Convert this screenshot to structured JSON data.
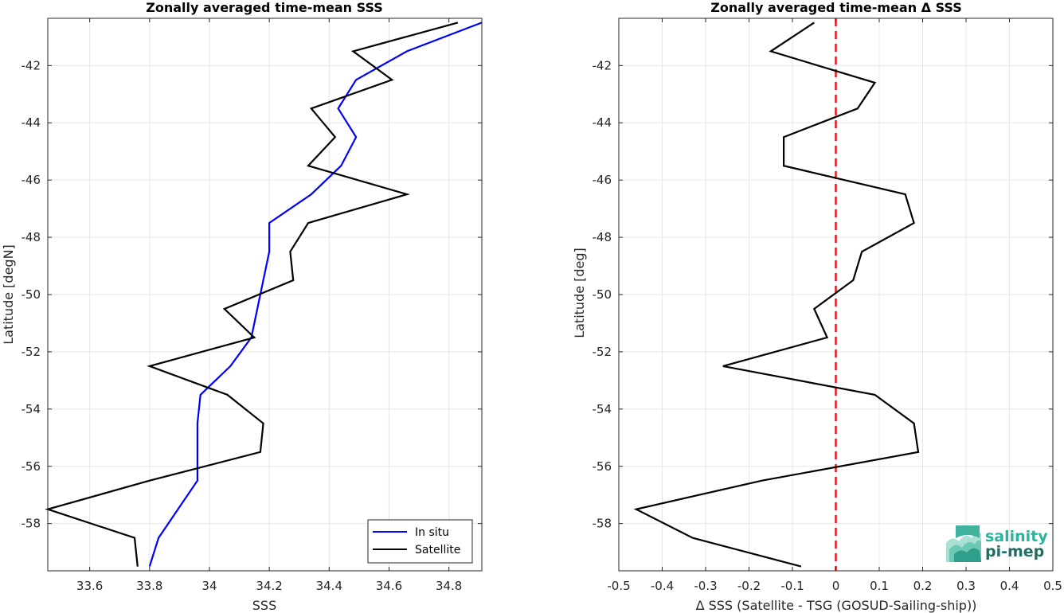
{
  "chart_data": [
    {
      "type": "line",
      "title": "Zonally averaged time-mean SSS",
      "xlabel": "SSS",
      "ylabel": "Latitude [degN]",
      "xlim": [
        33.46,
        34.91
      ],
      "ylim": [
        -59.65,
        -40.35
      ],
      "xticks": [
        33.6,
        33.8,
        34,
        34.2,
        34.4,
        34.6,
        34.8
      ],
      "xtick_labels": [
        "33.6",
        "33.8",
        "34",
        "34.2",
        "34.4",
        "34.6",
        "34.8"
      ],
      "yticks": [
        -42,
        -44,
        -46,
        -48,
        -50,
        -52,
        -54,
        -56,
        -58
      ],
      "ytick_labels": [
        "-42",
        "-44",
        "-46",
        "-48",
        "-50",
        "-52",
        "-54",
        "-56",
        "-58"
      ],
      "grid": true,
      "legend_position": "bottom-right",
      "series": [
        {
          "name": "In situ",
          "color": "#0000ff",
          "points": [
            [
              34.91,
              -40.5
            ],
            [
              34.66,
              -41.5
            ],
            [
              34.49,
              -42.5
            ],
            [
              34.43,
              -43.5
            ],
            [
              34.49,
              -44.5
            ],
            [
              34.44,
              -45.5
            ],
            [
              34.34,
              -46.5
            ],
            [
              34.2,
              -47.5
            ],
            [
              34.2,
              -48.5
            ],
            [
              34.18,
              -49.5
            ],
            [
              34.16,
              -50.5
            ],
            [
              34.14,
              -51.5
            ],
            [
              34.07,
              -52.5
            ],
            [
              33.97,
              -53.5
            ],
            [
              33.96,
              -54.5
            ],
            [
              33.96,
              -55.5
            ],
            [
              33.96,
              -56.5
            ],
            [
              33.83,
              -58.5
            ],
            [
              33.8,
              -59.5
            ]
          ]
        },
        {
          "name": "Satellite",
          "color": "#000000",
          "points": [
            [
              34.83,
              -40.5
            ],
            [
              34.48,
              -41.5
            ],
            [
              34.61,
              -42.5
            ],
            [
              34.34,
              -43.5
            ],
            [
              34.42,
              -44.5
            ],
            [
              34.33,
              -45.5
            ],
            [
              34.66,
              -46.5
            ],
            [
              34.33,
              -47.5
            ],
            [
              34.27,
              -48.5
            ],
            [
              34.28,
              -49.5
            ],
            [
              34.05,
              -50.5
            ],
            [
              34.15,
              -51.5
            ],
            [
              33.8,
              -52.5
            ],
            [
              34.06,
              -53.5
            ],
            [
              34.18,
              -54.5
            ],
            [
              34.17,
              -55.5
            ],
            [
              33.8,
              -56.5
            ],
            [
              33.46,
              -57.5
            ],
            [
              33.75,
              -58.5
            ],
            [
              33.76,
              -59.5
            ]
          ]
        }
      ]
    },
    {
      "type": "line",
      "title": "Zonally averaged time-mean Δ SSS",
      "xlabel": "Δ SSS (Satellite - TSG (GOSUD-Sailing-ship))",
      "ylabel": "Latitude [deg]",
      "xlim": [
        -0.5,
        0.5
      ],
      "ylim": [
        -59.65,
        -40.35
      ],
      "xticks": [
        -0.5,
        -0.4,
        -0.3,
        -0.2,
        -0.1,
        0,
        0.1,
        0.2,
        0.3,
        0.4,
        0.5
      ],
      "xtick_labels": [
        "-0.5",
        "-0.4",
        "-0.3",
        "-0.2",
        "-0.1",
        "0",
        "0.1",
        "0.2",
        "0.3",
        "0.4",
        "0.5"
      ],
      "yticks": [
        -42,
        -44,
        -46,
        -48,
        -50,
        -52,
        -54,
        -56,
        -58
      ],
      "ytick_labels": [
        "-42",
        "-44",
        "-46",
        "-48",
        "-50",
        "-52",
        "-54",
        "-56",
        "-58"
      ],
      "grid": true,
      "reference_line": {
        "x": 0,
        "color": "#e41a1c",
        "style": "dashed"
      },
      "series": [
        {
          "color": "#000000",
          "points": [
            [
              -0.05,
              -40.5
            ],
            [
              -0.15,
              -41.5
            ],
            [
              0.09,
              -42.6
            ],
            [
              0.05,
              -43.5
            ],
            [
              -0.12,
              -44.5
            ],
            [
              -0.12,
              -45.5
            ],
            [
              0.16,
              -46.5
            ],
            [
              0.18,
              -47.5
            ],
            [
              0.06,
              -48.5
            ],
            [
              0.04,
              -49.5
            ],
            [
              -0.05,
              -50.5
            ],
            [
              -0.02,
              -51.5
            ],
            [
              -0.26,
              -52.5
            ],
            [
              0.09,
              -53.5
            ],
            [
              0.18,
              -54.5
            ],
            [
              0.19,
              -55.5
            ],
            [
              -0.17,
              -56.5
            ],
            [
              -0.46,
              -57.5
            ],
            [
              -0.33,
              -58.5
            ],
            [
              -0.08,
              -59.5
            ]
          ]
        }
      ]
    }
  ],
  "logo": {
    "line1": "salinity",
    "line2": "pi-mep"
  },
  "colors": {
    "axis": "#262626",
    "grid": "#e6e6e6"
  }
}
